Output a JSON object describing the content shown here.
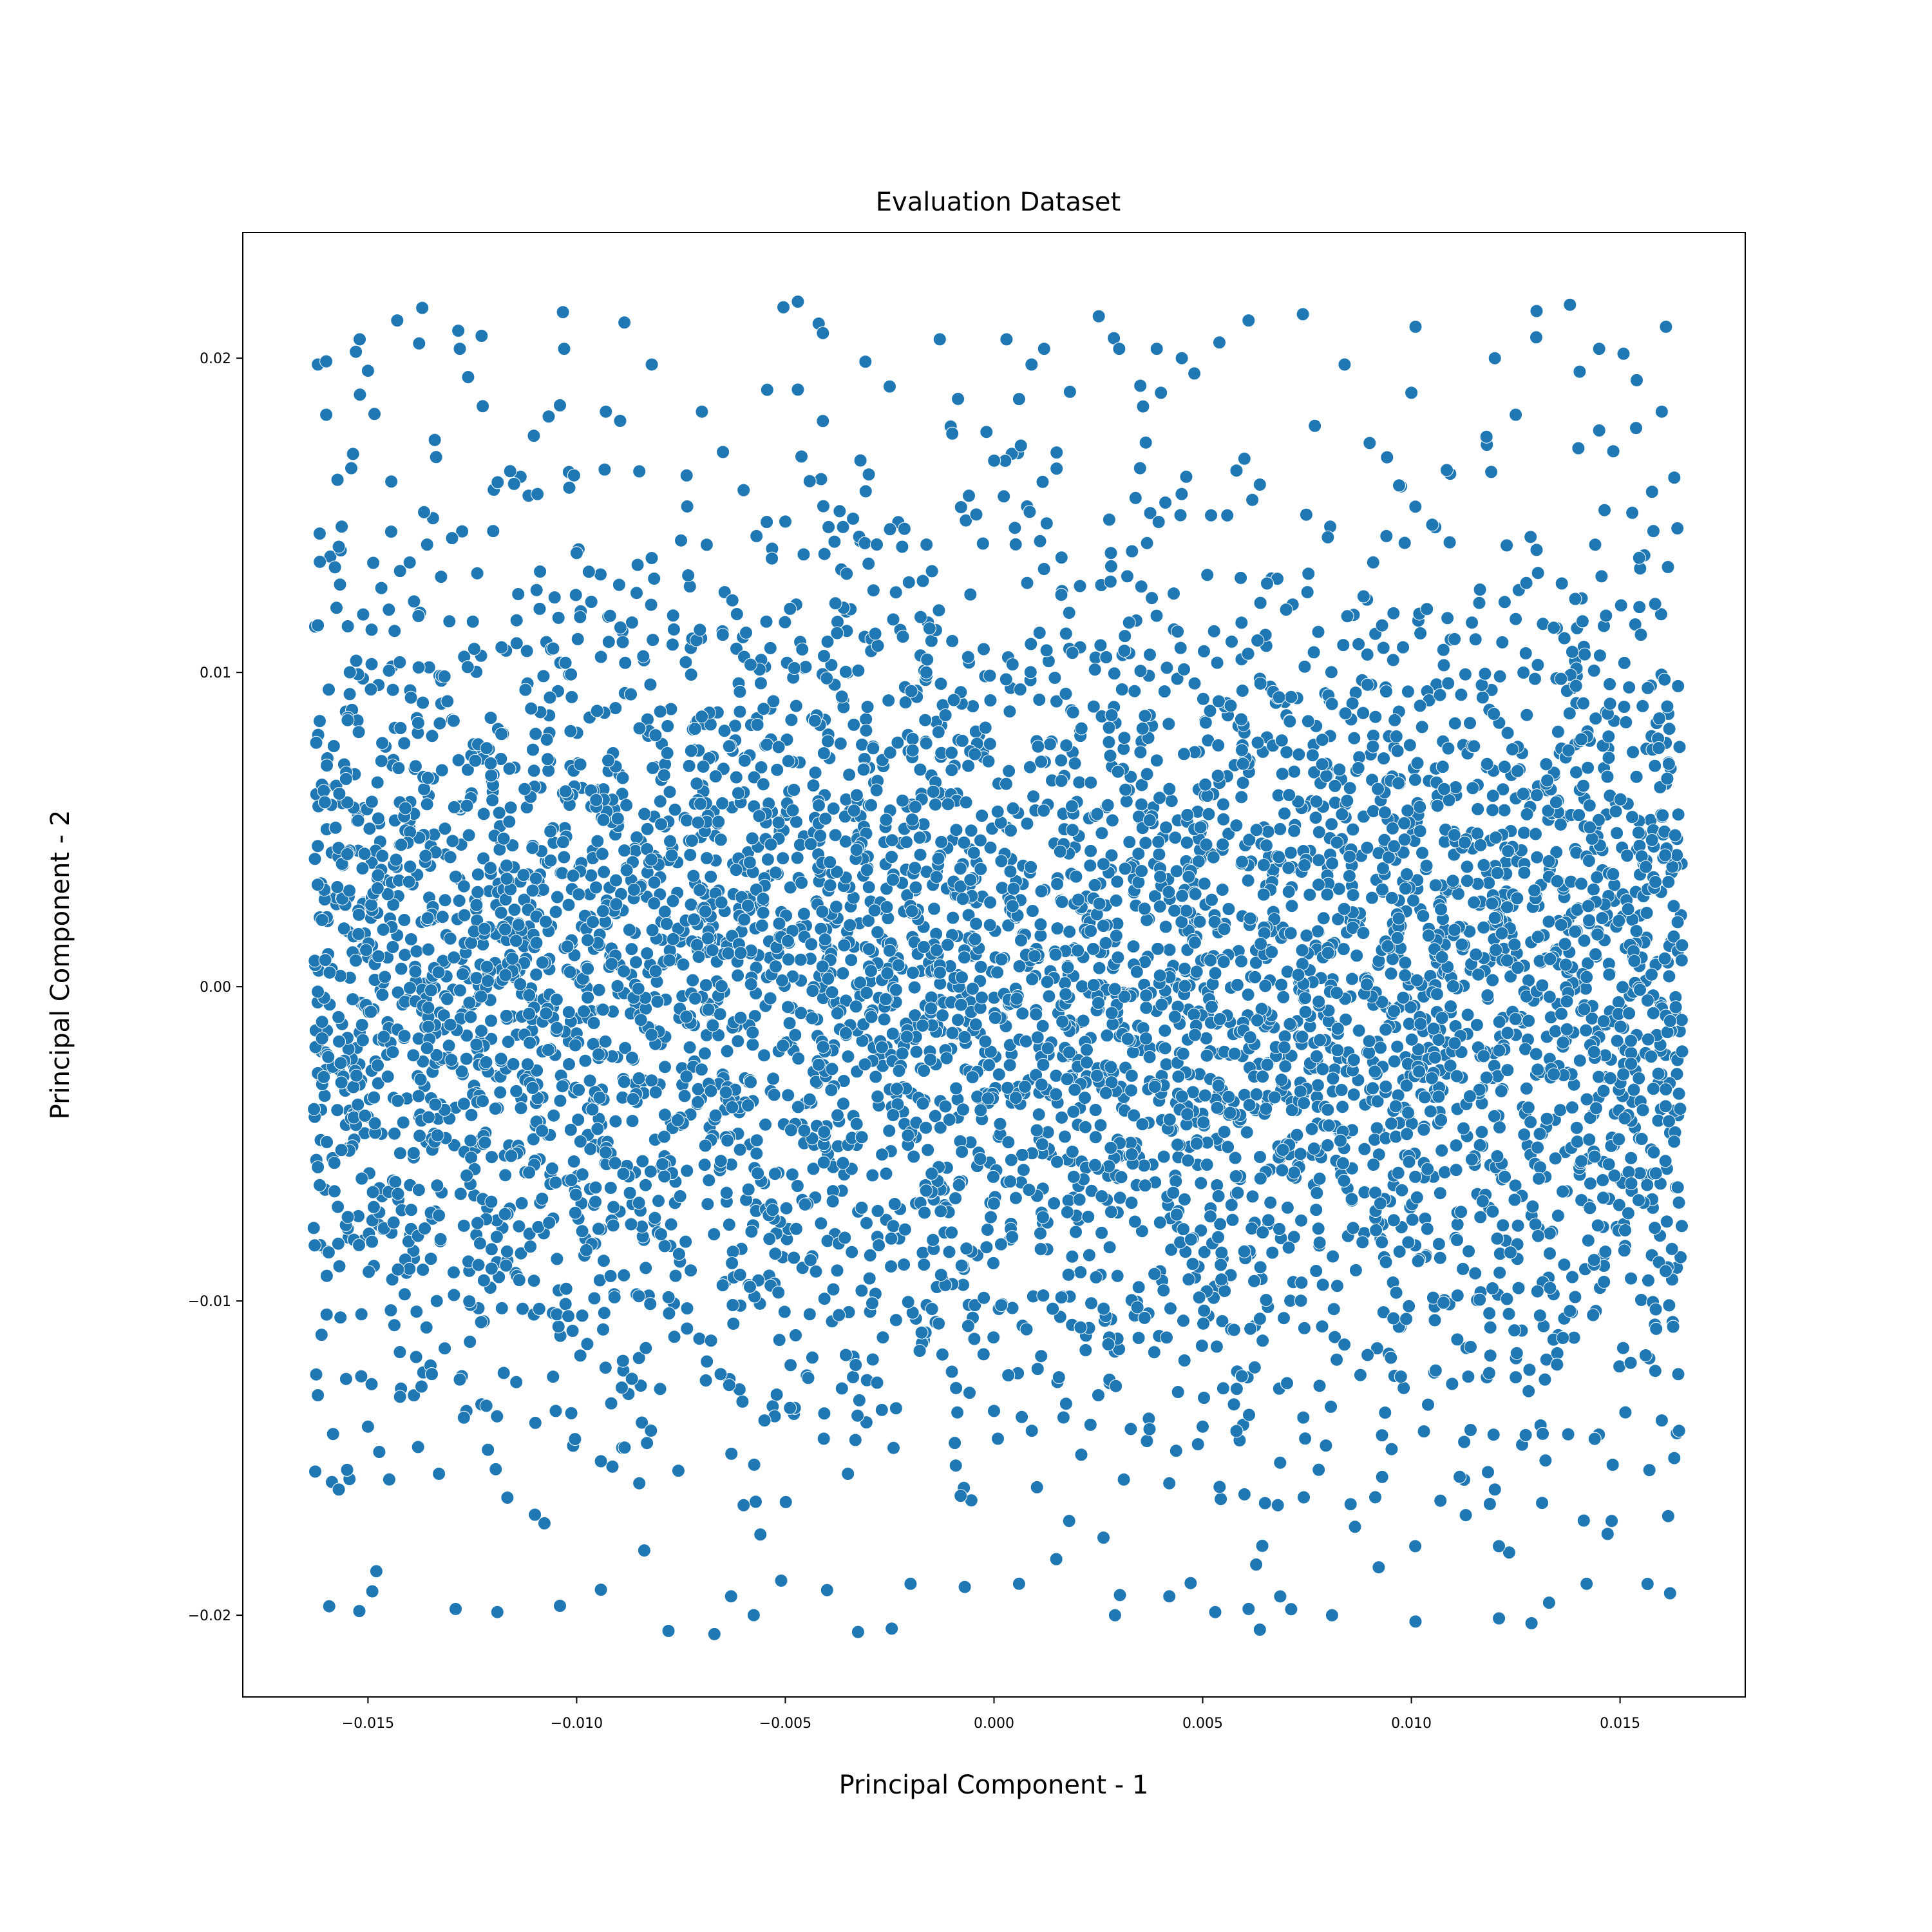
{
  "chart_data": {
    "type": "scatter",
    "title": "Evaluation Dataset",
    "xlabel": "Principal Component - 1",
    "ylabel": "Principal Component - 2",
    "xlim": [
      -0.018,
      0.018
    ],
    "ylim": [
      -0.0226,
      0.024
    ],
    "x_ticks": [
      -0.015,
      -0.01,
      -0.005,
      0.0,
      0.005,
      0.01,
      0.015
    ],
    "x_tick_labels": [
      "−0.015",
      "−0.010",
      "−0.005",
      "0.000",
      "0.005",
      "0.010",
      "0.015"
    ],
    "y_ticks": [
      0.02,
      0.01,
      0.0,
      -0.01,
      -0.02
    ],
    "y_tick_labels": [
      "0.02",
      "0.01",
      "0.00",
      "−0.01",
      "−0.02"
    ],
    "grid": false,
    "marker_color": "#1f77b4",
    "marker_edge_color": "#ffffff",
    "x_range_of_points": [
      -0.0163,
      0.0165
    ],
    "y_range_of_points": [
      -0.0207,
      0.0218
    ],
    "sampled_points": [
      [
        -0.0162,
        0.0198
      ],
      [
        -0.016,
        0.0199
      ],
      [
        -0.0152,
        0.0206
      ],
      [
        -0.0143,
        0.0212
      ],
      [
        -0.0137,
        0.0216
      ],
      [
        -0.0128,
        0.0203
      ],
      [
        -0.0103,
        0.0203
      ],
      [
        -0.0047,
        0.0218
      ],
      [
        -0.0042,
        0.0211
      ],
      [
        -0.0041,
        0.0208
      ],
      [
        -0.0013,
        0.0206
      ],
      [
        0.0003,
        0.0206
      ],
      [
        0.0012,
        0.0203
      ],
      [
        0.003,
        0.0203
      ],
      [
        0.0045,
        0.02
      ],
      [
        0.0054,
        0.0205
      ],
      [
        0.0061,
        0.0212
      ],
      [
        0.0074,
        0.0214
      ],
      [
        0.0101,
        0.021
      ],
      [
        0.013,
        0.0215
      ],
      [
        0.0138,
        0.0217
      ],
      [
        0.0145,
        0.0203
      ],
      [
        0.0161,
        0.021
      ],
      [
        -0.015,
        0.0196
      ],
      [
        -0.0082,
        0.0198
      ],
      [
        -0.0047,
        0.019
      ],
      [
        -0.0025,
        0.0191
      ],
      [
        0.0009,
        0.0198
      ],
      [
        0.0039,
        0.0203
      ],
      [
        0.0084,
        0.0198
      ],
      [
        0.012,
        0.02
      ],
      [
        0.0154,
        0.0193
      ],
      [
        -0.016,
        0.0182
      ],
      [
        -0.0126,
        0.0194
      ],
      [
        -0.0104,
        0.0185
      ],
      [
        -0.0093,
        0.0183
      ],
      [
        -0.007,
        0.0183
      ],
      [
        -0.0041,
        0.018
      ],
      [
        0.0006,
        0.0187
      ],
      [
        0.004,
        0.0189
      ],
      [
        0.01,
        0.0189
      ],
      [
        0.0125,
        0.0182
      ],
      [
        0.016,
        0.0183
      ],
      [
        -0.0154,
        0.0165
      ],
      [
        -0.0134,
        0.0174
      ],
      [
        -0.0115,
        0.016
      ],
      [
        -0.0085,
        0.0164
      ],
      [
        -0.006,
        0.0158
      ],
      [
        -0.003,
        0.0163
      ],
      [
        -0.001,
        0.0176
      ],
      [
        0.0015,
        0.017
      ],
      [
        0.0035,
        0.0165
      ],
      [
        0.006,
        0.0168
      ],
      [
        0.009,
        0.0173
      ],
      [
        0.0118,
        0.0175
      ],
      [
        0.0145,
        0.0177
      ],
      [
        0.0163,
        0.0162
      ],
      [
        -0.0157,
        0.014
      ],
      [
        -0.014,
        0.0135
      ],
      [
        -0.012,
        0.0145
      ],
      [
        -0.01,
        0.0138
      ],
      [
        -0.0075,
        0.0142
      ],
      [
        -0.005,
        0.0148
      ],
      [
        -0.0022,
        0.014
      ],
      [
        0.0005,
        0.0146
      ],
      [
        0.0028,
        0.0138
      ],
      [
        0.0052,
        0.015
      ],
      [
        0.008,
        0.0143
      ],
      [
        0.0105,
        0.0147
      ],
      [
        0.013,
        0.0139
      ],
      [
        0.0158,
        0.0145
      ],
      [
        -0.0162,
        0.0115
      ],
      [
        -0.0145,
        0.012
      ],
      [
        -0.0118,
        0.0108
      ],
      [
        -0.0092,
        0.0118
      ],
      [
        -0.0065,
        0.0112
      ],
      [
        -0.0038,
        0.0122
      ],
      [
        -0.001,
        0.011
      ],
      [
        0.0018,
        0.0119
      ],
      [
        0.0044,
        0.0113
      ],
      [
        0.007,
        0.012
      ],
      [
        0.0098,
        0.0108
      ],
      [
        0.0125,
        0.0117
      ],
      [
        0.0155,
        0.0112
      ],
      [
        -0.0162,
        -0.013
      ],
      [
        -0.015,
        -0.014
      ],
      [
        -0.0128,
        -0.0125
      ],
      [
        -0.0105,
        -0.0135
      ],
      [
        -0.008,
        -0.0128
      ],
      [
        -0.0055,
        -0.0138
      ],
      [
        -0.0028,
        -0.0126
      ],
      [
        0.0,
        -0.0135
      ],
      [
        0.0025,
        -0.013
      ],
      [
        0.005,
        -0.014
      ],
      [
        0.0078,
        -0.0127
      ],
      [
        0.0104,
        -0.0133
      ],
      [
        0.0132,
        -0.0125
      ],
      [
        0.016,
        -0.0138
      ],
      [
        -0.0157,
        -0.016
      ],
      [
        -0.0133,
        -0.0155
      ],
      [
        -0.011,
        -0.0168
      ],
      [
        -0.0085,
        -0.0158
      ],
      [
        -0.006,
        -0.0165
      ],
      [
        -0.0035,
        -0.0155
      ],
      [
        -0.0008,
        -0.0162
      ],
      [
        0.0018,
        -0.017
      ],
      [
        0.0042,
        -0.0158
      ],
      [
        0.0068,
        -0.0165
      ],
      [
        0.0093,
        -0.0156
      ],
      [
        0.012,
        -0.016
      ],
      [
        0.0148,
        -0.017
      ],
      [
        0.0163,
        -0.015
      ],
      [
        -0.0148,
        -0.0186
      ],
      [
        -0.0129,
        -0.0198
      ],
      [
        -0.0119,
        -0.0199
      ],
      [
        -0.0104,
        -0.0197
      ],
      [
        -0.0078,
        -0.0205
      ],
      [
        -0.0067,
        -0.0206
      ],
      [
        -0.0063,
        -0.0194
      ],
      [
        -0.0051,
        -0.0189
      ],
      [
        -0.004,
        -0.0192
      ],
      [
        -0.002,
        -0.019
      ],
      [
        -0.0007,
        -0.0191
      ],
      [
        0.0006,
        -0.019
      ],
      [
        0.0029,
        -0.02
      ],
      [
        0.0042,
        -0.0194
      ],
      [
        0.0053,
        -0.0199
      ],
      [
        0.0061,
        -0.0198
      ],
      [
        0.0081,
        -0.02
      ],
      [
        0.0101,
        -0.0202
      ],
      [
        0.0121,
        -0.0201
      ],
      [
        0.0133,
        -0.0196
      ],
      [
        0.0142,
        -0.019
      ],
      [
        0.0162,
        -0.0193
      ]
    ]
  }
}
